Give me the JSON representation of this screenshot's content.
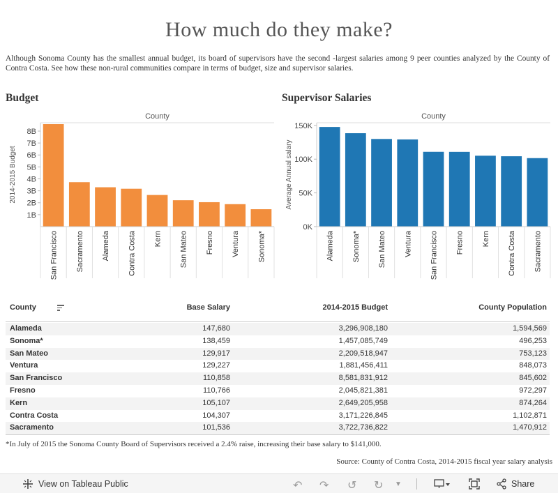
{
  "title": "How much do they make?",
  "intro": "Although Sonoma County has the smallest annual budget, its board of supervisors have the second -largest salaries among 9 peer counties analyzed by the County of Contra Costa.  See how these non-rural communities compare in terms of  budget, size and supervisor salaries.",
  "colors": {
    "budget": "#f28e3d",
    "salary": "#1f77b4"
  },
  "chart_data": [
    {
      "type": "bar",
      "title": "Budget",
      "header": "County",
      "ylabel": "2014-2015 Budget",
      "categories": [
        "San Francisco",
        "Sacramento",
        "Alameda",
        "Contra Costa",
        "Kern",
        "San Mateo",
        "Fresno",
        "Ventura",
        "Sonoma*"
      ],
      "values": [
        8581831912,
        3722736822,
        3296908180,
        3171226845,
        2649205958,
        2209518947,
        2045821381,
        1881456411,
        1457085749
      ],
      "ylim": [
        0,
        8700000000
      ],
      "ticks": [
        1000000000,
        2000000000,
        3000000000,
        4000000000,
        5000000000,
        6000000000,
        7000000000,
        8000000000
      ],
      "tick_labels": [
        "1B",
        "2B",
        "3B",
        "4B",
        "5B",
        "6B",
        "7B",
        "8B"
      ]
    },
    {
      "type": "bar",
      "title": "Supervisor  Salaries",
      "header": "County",
      "ylabel": "Average Annual salary",
      "categories": [
        "Alameda",
        "Sonoma*",
        "San Mateo",
        "Ventura",
        "San Francisco",
        "Fresno",
        "Kern",
        "Contra Costa",
        "Sacramento"
      ],
      "values": [
        147680,
        138459,
        129917,
        129227,
        110858,
        110766,
        105107,
        104307,
        101536
      ],
      "ylim": [
        0,
        154000
      ],
      "ticks": [
        0,
        50000,
        100000,
        150000
      ],
      "tick_labels": [
        "0K",
        "50K",
        "100K",
        "150K"
      ]
    }
  ],
  "table": {
    "headers": [
      "County",
      "Base Salary",
      "2014-2015 Budget",
      "County Population"
    ],
    "rows": [
      [
        "Alameda",
        "147,680",
        "3,296,908,180",
        "1,594,569"
      ],
      [
        "Sonoma*",
        "138,459",
        "1,457,085,749",
        "496,253"
      ],
      [
        "San Mateo",
        "129,917",
        "2,209,518,947",
        "753,123"
      ],
      [
        "Ventura",
        "129,227",
        "1,881,456,411",
        "848,073"
      ],
      [
        "San Francisco",
        "110,858",
        "8,581,831,912",
        "845,602"
      ],
      [
        "Fresno",
        "110,766",
        "2,045,821,381",
        "972,297"
      ],
      [
        "Kern",
        "105,107",
        "2,649,205,958",
        "874,264"
      ],
      [
        "Contra Costa",
        "104,307",
        "3,171,226,845",
        "1,102,871"
      ],
      [
        "Sacramento",
        "101,536",
        "3,722,736,822",
        "1,470,912"
      ]
    ]
  },
  "footnote": "*In July of 2015 the Sonoma County Board of Supervisors received a 2.4% raise, increasing their base salary to $141,000.",
  "source": "Source: County of Contra Costa, 2014-2015 fiscal year salary analysis",
  "toolbar": {
    "view_label": "View on Tableau Public",
    "share_label": "Share",
    "icons": [
      "tableau-icon",
      "undo-icon",
      "redo-icon",
      "revert-icon",
      "refresh-icon",
      "pause-icon",
      "download-icon",
      "fullscreen-icon",
      "share-icon"
    ]
  }
}
